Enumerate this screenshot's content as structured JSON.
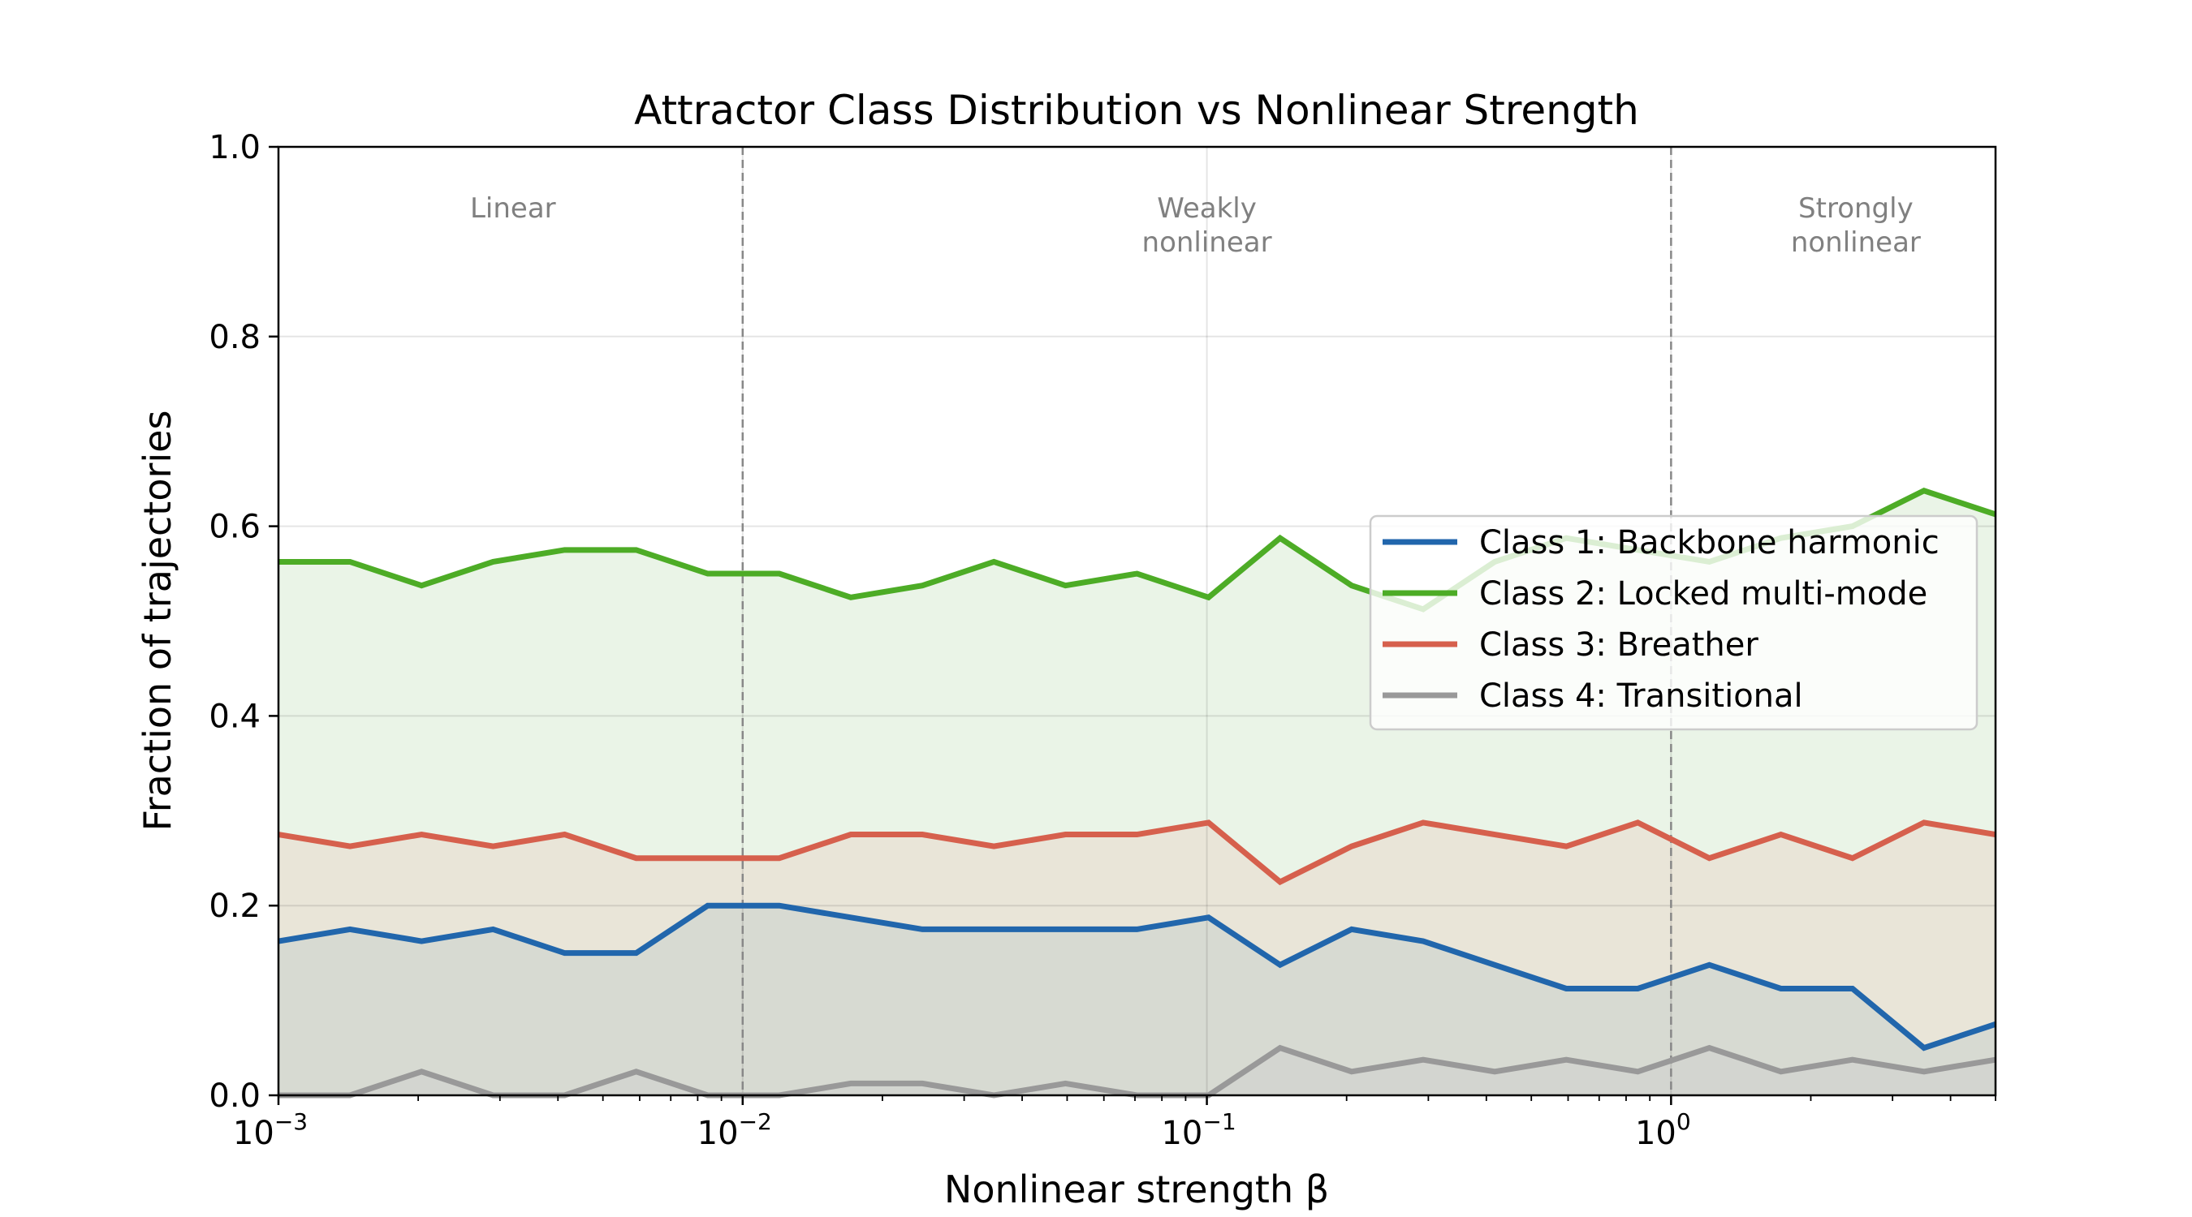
{
  "chart_data": {
    "type": "line",
    "title": "Attractor Class Distribution vs Nonlinear Strength",
    "xlabel": "Nonlinear strength β",
    "ylabel": "Fraction of trajectories",
    "xscale": "log",
    "xlim": [
      0.001,
      5
    ],
    "ylim": [
      0,
      1.0
    ],
    "x_ticks": [
      0.001,
      0.01,
      0.1,
      1
    ],
    "x_tick_labels": [
      [
        "10",
        "−3"
      ],
      [
        "10",
        "−2"
      ],
      [
        "10",
        "−1"
      ],
      [
        "10",
        "0"
      ]
    ],
    "y_ticks": [
      0,
      0.2,
      0.4,
      0.6,
      0.8,
      1.0
    ],
    "y_tick_labels": [
      "0.0",
      "0.2",
      "0.4",
      "0.6",
      "0.8",
      "1.0"
    ],
    "grid": true,
    "legend_position": "center-right",
    "x_points": "25 log-spaced values from 0.001 to 5",
    "regime_boundaries": [
      0.01,
      1
    ],
    "regime_labels": [
      {
        "text": [
          "Linear"
        ],
        "x": 0.0032
      },
      {
        "text": [
          "Weakly",
          "nonlinear"
        ],
        "x": 0.1
      },
      {
        "text": [
          "Strongly",
          "nonlinear"
        ],
        "x": 2.5
      }
    ],
    "series": [
      {
        "name": "Class 1: Backbone harmonic",
        "color": "#2166AC",
        "values": [
          0.1625,
          0.175,
          0.1625,
          0.175,
          0.15,
          0.15,
          0.2,
          0.2,
          0.1875,
          0.175,
          0.175,
          0.175,
          0.175,
          0.1875,
          0.1375,
          0.175,
          0.1625,
          0.1375,
          0.1125,
          0.1125,
          0.1375,
          0.1125,
          0.1125,
          0.05,
          0.075
        ]
      },
      {
        "name": "Class 2: Locked multi-mode",
        "color": "#4DAC26",
        "values": [
          0.5625,
          0.5625,
          0.5375,
          0.5625,
          0.575,
          0.575,
          0.55,
          0.55,
          0.525,
          0.5375,
          0.5625,
          0.5375,
          0.55,
          0.525,
          0.5875,
          0.5375,
          0.5125,
          0.5625,
          0.5875,
          0.575,
          0.5625,
          0.5875,
          0.6,
          0.6375,
          0.6125
        ]
      },
      {
        "name": "Class 3: Breather",
        "color": "#D6604D",
        "values": [
          0.275,
          0.2625,
          0.275,
          0.2625,
          0.275,
          0.25,
          0.25,
          0.25,
          0.275,
          0.275,
          0.2625,
          0.275,
          0.275,
          0.2875,
          0.225,
          0.2625,
          0.2875,
          0.275,
          0.2625,
          0.2875,
          0.25,
          0.275,
          0.25,
          0.2875,
          0.275
        ]
      },
      {
        "name": "Class 4: Transitional",
        "color": "#999999",
        "values": [
          0,
          0,
          0.025,
          0,
          0,
          0.025,
          0,
          0,
          0.0125,
          0.0125,
          0,
          0.0125,
          0,
          0,
          0.05,
          0.025,
          0.0375,
          0.025,
          0.0375,
          0.025,
          0.05,
          0.025,
          0.0375,
          0.025,
          0.0375
        ]
      }
    ]
  }
}
